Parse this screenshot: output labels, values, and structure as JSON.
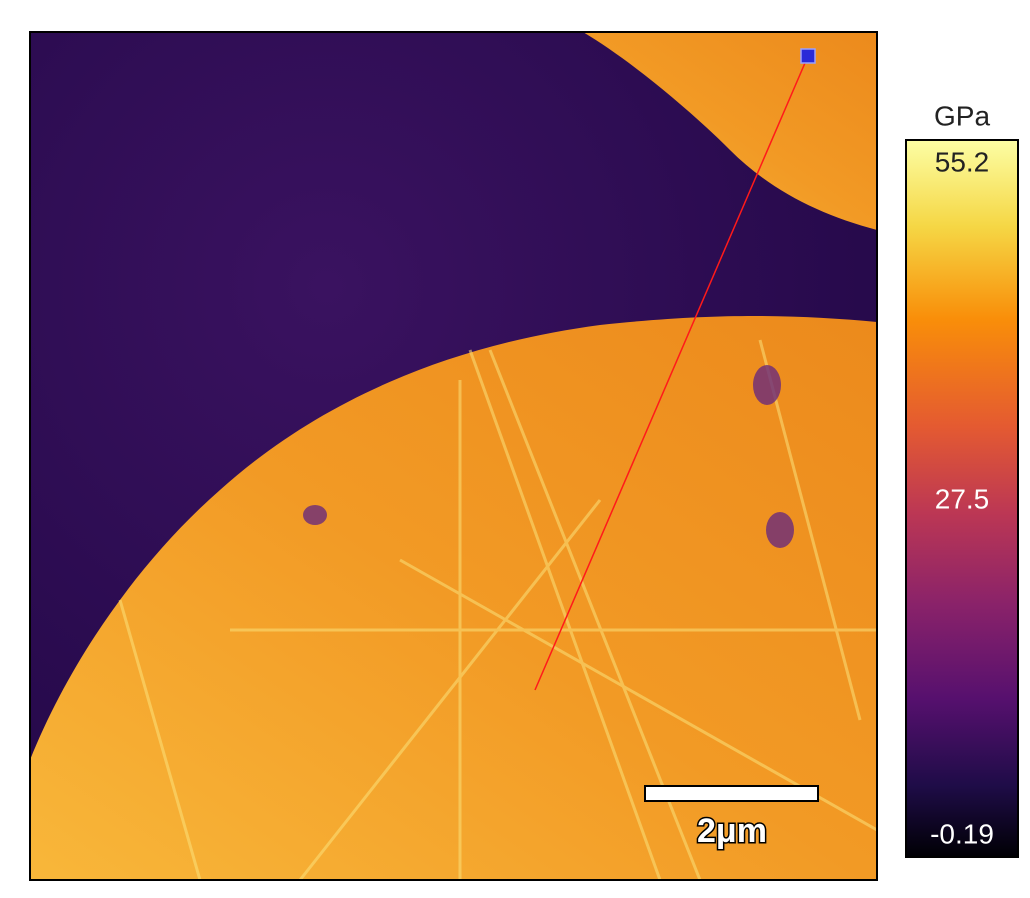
{
  "image": {
    "scale_bar": "2μm"
  },
  "colorbar": {
    "unit": "GPa",
    "max": 55.2,
    "mid": 27.5,
    "min": -0.19
  }
}
